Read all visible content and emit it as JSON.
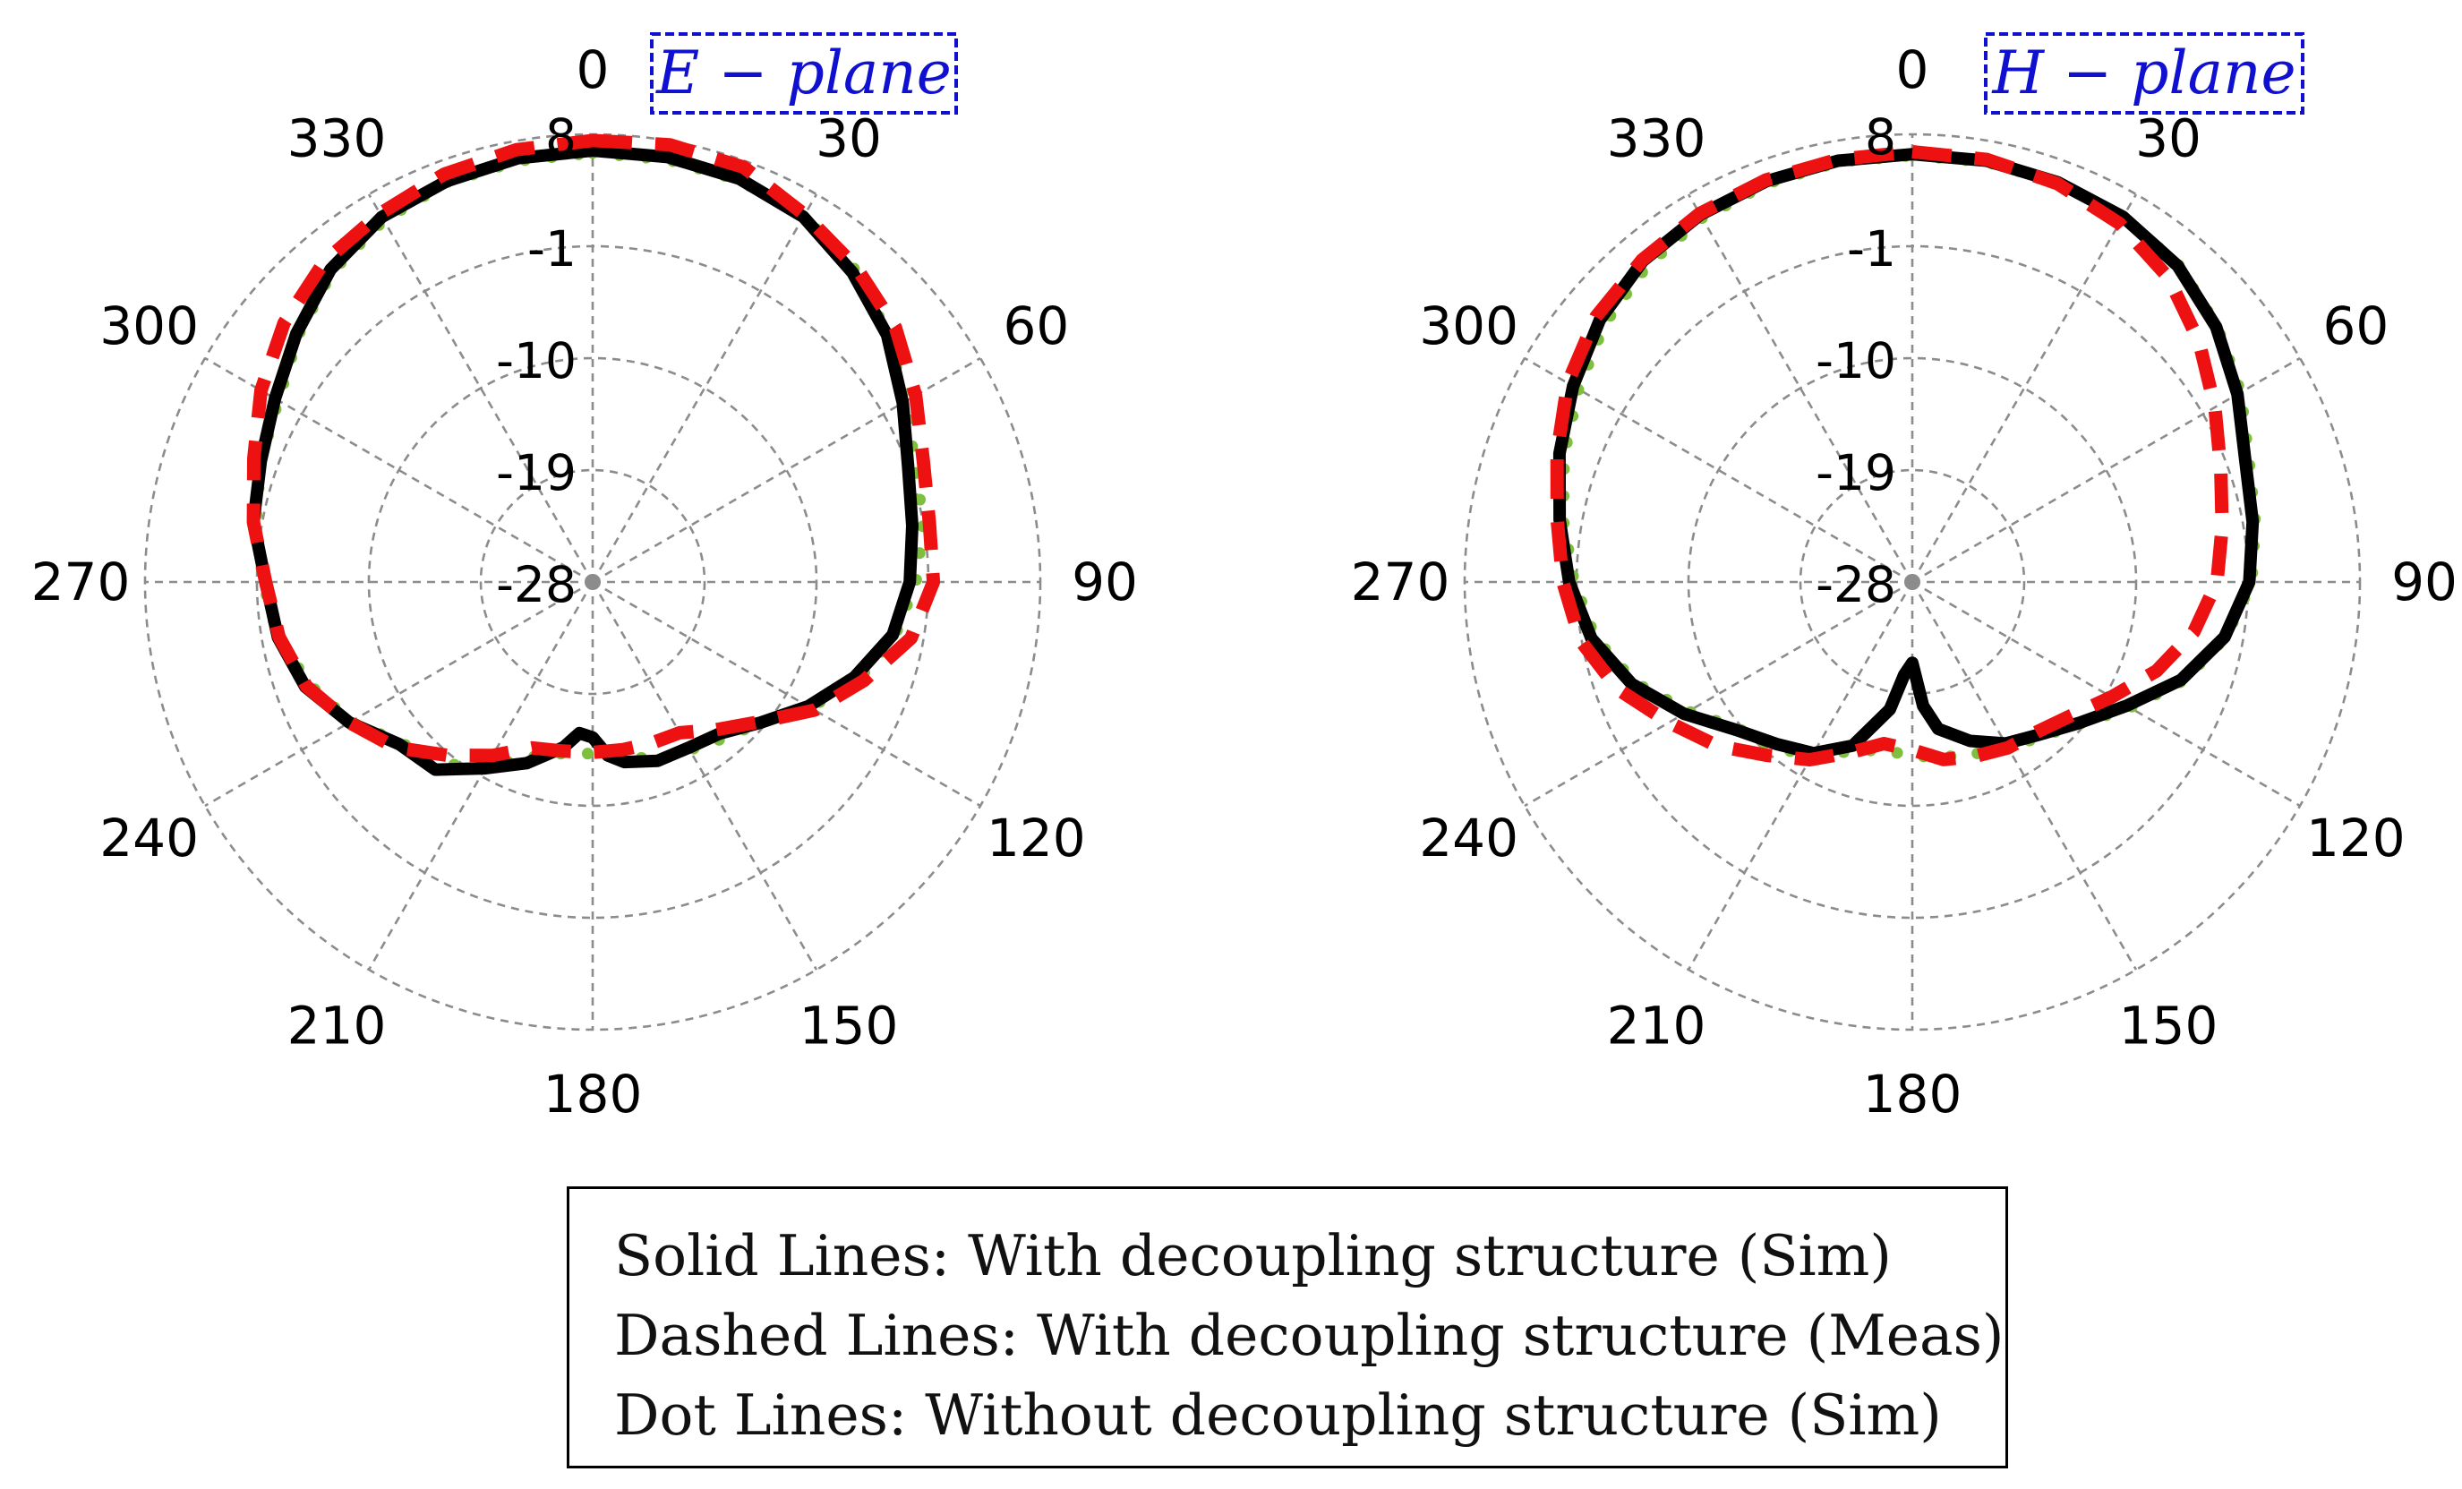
{
  "chart_data": [
    {
      "type": "polar-line",
      "title": "E − plane",
      "title_color": "#1010d0",
      "angle_ticks": [
        "0",
        "30",
        "60",
        "90",
        "120",
        "150",
        "180",
        "210",
        "240",
        "270",
        "300",
        "330"
      ],
      "radial_ticks": [
        "8",
        "-1",
        "-10",
        "-19",
        "-28"
      ],
      "rlim": [
        -28,
        8
      ],
      "series": [
        {
          "name": "Solid Lines: With decoupling structure (Sim)",
          "style": "solid",
          "color": "#000000",
          "angles": [
            0,
            10,
            20,
            30,
            40,
            50,
            60,
            70,
            80,
            90,
            100,
            110,
            120,
            130,
            140,
            150,
            160,
            170,
            175,
            180,
            185,
            190,
            200,
            210,
            220,
            230,
            240,
            250,
            260,
            270,
            280,
            290,
            300,
            310,
            320,
            330,
            340,
            350,
            360
          ],
          "values": [
            6.7,
            6.7,
            6.5,
            5.9,
            4.5,
            2.9,
            0.8,
            -1.0,
            -1.9,
            -2.5,
            -3.5,
            -5.6,
            -8.0,
            -10.4,
            -12.1,
            -12.6,
            -12.7,
            -13.3,
            -14.0,
            -15.5,
            -15.8,
            -14.5,
            -12.5,
            -10.7,
            -8.3,
            -7.7,
            -5.4,
            -3.4,
            -2.3,
            -1.7,
            -0.3,
            0.4,
            1.5,
            3.1,
            4.8,
            5.9,
            6.3,
            6.6,
            6.7
          ]
        },
        {
          "name": "Dashed Lines: With decoupling structure (Meas)",
          "style": "dashed",
          "color": "#ee1111",
          "angles": [
            0,
            10,
            20,
            30,
            40,
            50,
            60,
            70,
            80,
            90,
            100,
            110,
            120,
            130,
            140,
            150,
            160,
            170,
            180,
            190,
            200,
            210,
            220,
            230,
            240,
            250,
            260,
            270,
            280,
            290,
            300,
            310,
            320,
            330,
            340,
            350,
            360
          ],
          "values": [
            7.5,
            7.7,
            7.5,
            6.1,
            5.0,
            3.8,
            2.0,
            0.3,
            -0.5,
            -0.6,
            -2.0,
            -4.8,
            -7.4,
            -10.5,
            -12.5,
            -14.0,
            -14.2,
            -14.3,
            -14.3,
            -14.2,
            -13.8,
            -11.9,
            -9.8,
            -7.3,
            -5.4,
            -3.5,
            -2.4,
            -1.7,
            -0.3,
            1.0,
            2.8,
            4.4,
            5.6,
            6.2,
            6.9,
            7.3,
            7.5
          ]
        },
        {
          "name": "Dot Lines: Without decoupling structure (Sim)",
          "style": "dotted",
          "color": "#7fbf3f",
          "angles": [
            0,
            10,
            20,
            30,
            40,
            50,
            60,
            70,
            80,
            90,
            100,
            110,
            120,
            130,
            140,
            150,
            160,
            170,
            180,
            190,
            200,
            210,
            220,
            230,
            240,
            250,
            260,
            270,
            280,
            290,
            300,
            310,
            320,
            330,
            340,
            350,
            360
          ],
          "values": [
            6.5,
            6.5,
            6.4,
            6.0,
            4.8,
            3.0,
            1.0,
            -0.4,
            -1.0,
            -2.0,
            -3.3,
            -5.2,
            -7.8,
            -10.4,
            -11.6,
            -12.4,
            -12.8,
            -13.8,
            -14.2,
            -14.0,
            -13.0,
            -10.9,
            -8.9,
            -7.9,
            -5.5,
            -3.8,
            -2.3,
            -1.5,
            -0.5,
            0.4,
            1.2,
            2.9,
            4.6,
            5.6,
            6.2,
            6.4,
            6.5
          ]
        }
      ]
    },
    {
      "type": "polar-line",
      "title": "H − plane",
      "title_color": "#1010d0",
      "angle_ticks": [
        "0",
        "30",
        "60",
        "90",
        "120",
        "150",
        "180",
        "210",
        "240",
        "270",
        "300",
        "330"
      ],
      "radial_ticks": [
        "8",
        "-1",
        "-10",
        "-19",
        "-28"
      ],
      "rlim": [
        -28,
        8
      ],
      "series": [
        {
          "name": "Solid Lines: With decoupling structure (Sim)",
          "style": "solid",
          "color": "#000000",
          "angles": [
            0,
            10,
            20,
            30,
            40,
            50,
            60,
            70,
            80,
            90,
            100,
            110,
            120,
            130,
            140,
            150,
            160,
            170,
            175,
            180,
            185,
            190,
            200,
            210,
            220,
            230,
            240,
            250,
            260,
            270,
            280,
            290,
            300,
            310,
            320,
            330,
            340,
            350,
            360
          ],
          "values": [
            6.4,
            6.4,
            6.2,
            5.9,
            5.2,
            3.9,
            2.2,
            0.5,
            -0.2,
            -0.9,
            -2.5,
            -5.0,
            -8.1,
            -10.4,
            -12.0,
            -13.0,
            -14.4,
            -16.0,
            -18.0,
            -21.5,
            -20.5,
            -17.6,
            -14.0,
            -12.1,
            -11.0,
            -9.5,
            -6.8,
            -4.0,
            -1.8,
            -0.4,
            0.8,
            2.2,
            3.5,
            4.8,
            5.7,
            6.1,
            6.3,
            6.4,
            6.4
          ]
        },
        {
          "name": "Dashed Lines: With decoupling structure (Meas)",
          "style": "dashed",
          "color": "#ee1111",
          "angles": [
            0,
            10,
            20,
            30,
            40,
            50,
            60,
            70,
            80,
            90,
            100,
            110,
            120,
            130,
            140,
            150,
            160,
            170,
            180,
            190,
            200,
            210,
            220,
            230,
            240,
            250,
            260,
            270,
            280,
            290,
            300,
            310,
            320,
            330,
            340,
            350,
            360
          ],
          "values": [
            6.6,
            6.5,
            6.1,
            5.3,
            4.0,
            2.1,
            0.1,
            -1.6,
            -2.7,
            -3.5,
            -5.0,
            -7.1,
            -9.5,
            -11.3,
            -12.3,
            -12.6,
            -13.1,
            -13.5,
            -14.5,
            -14.8,
            -13.4,
            -11.5,
            -9.8,
            -7.5,
            -5.4,
            -2.8,
            -0.9,
            0.1,
            1.0,
            2.4,
            4.0,
            5.2,
            5.8,
            6.2,
            6.4,
            6.5,
            6.6
          ]
        },
        {
          "name": "Dot Lines: Without decoupling structure (Sim)",
          "style": "dotted",
          "color": "#7fbf3f",
          "angles": [
            0,
            10,
            20,
            30,
            40,
            50,
            60,
            70,
            80,
            90,
            100,
            110,
            120,
            130,
            140,
            150,
            160,
            170,
            180,
            190,
            200,
            210,
            220,
            230,
            240,
            250,
            260,
            270,
            280,
            290,
            300,
            310,
            320,
            330,
            340,
            350,
            360
          ],
          "values": [
            6.3,
            6.3,
            6.2,
            5.9,
            5.3,
            4.0,
            2.5,
            0.8,
            0.0,
            -0.7,
            -2.4,
            -4.8,
            -7.8,
            -10.3,
            -11.8,
            -12.6,
            -13.3,
            -13.7,
            -14.0,
            -14.3,
            -13.5,
            -11.9,
            -10.6,
            -9.7,
            -7.2,
            -4.3,
            -2.1,
            -0.8,
            0.5,
            1.8,
            3.0,
            4.3,
            5.2,
            5.8,
            6.1,
            6.3,
            6.3
          ]
        }
      ]
    }
  ],
  "legend": {
    "solid": "Solid Lines: With decoupling structure (Sim)",
    "dashed": "Dashed Lines: With decoupling structure (Meas)",
    "dotted": "Dot Lines: Without decoupling structure (Sim)"
  }
}
